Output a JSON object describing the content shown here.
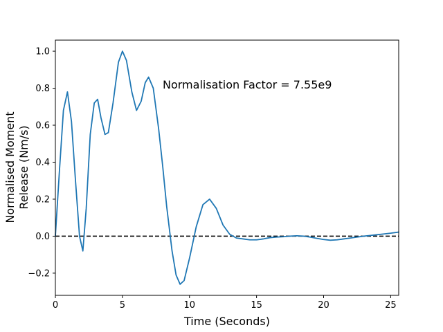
{
  "chart_data": {
    "type": "line",
    "title": "",
    "xlabel": "Time (Seconds)",
    "ylabel_lines": [
      "Normalised Moment",
      "Release (Nm/s)"
    ],
    "xlim": [
      0,
      25.6
    ],
    "ylim": [
      -0.32,
      1.06
    ],
    "xticks": [
      0,
      5,
      10,
      15,
      20,
      25
    ],
    "yticks": [
      -0.2,
      0.0,
      0.2,
      0.4,
      0.6,
      0.8,
      1.0
    ],
    "xtick_labels": [
      "0",
      "5",
      "10",
      "15",
      "20",
      "25"
    ],
    "ytick_labels": [
      "−0.2",
      "0.0",
      "0.2",
      "0.4",
      "0.6",
      "0.8",
      "1.0"
    ],
    "annotation": {
      "text": "Normalisation Factor = 7.55e9",
      "x": 8.0,
      "y": 0.8
    },
    "reference_line": {
      "y": 0.0,
      "style": "dashed",
      "color": "#000000"
    },
    "grid": false,
    "series": [
      {
        "color": "#1f77b4",
        "x": [
          0,
          0.3,
          0.6,
          0.9,
          1.2,
          1.5,
          1.8,
          2.05,
          2.3,
          2.6,
          2.9,
          3.15,
          3.4,
          3.7,
          3.95,
          4.3,
          4.7,
          5.0,
          5.3,
          5.7,
          6.05,
          6.4,
          6.7,
          6.95,
          7.3,
          7.7,
          8.0,
          8.3,
          8.7,
          9.0,
          9.3,
          9.6,
          10.0,
          10.5,
          11.0,
          11.5,
          12.0,
          12.5,
          13.0,
          13.5,
          14.0,
          14.5,
          15.0,
          15.5,
          16.0,
          16.5,
          17.0,
          17.5,
          18.0,
          18.5,
          19.0,
          19.5,
          20.0,
          20.5,
          21.0,
          21.5,
          22.0,
          22.5,
          23.0,
          23.5,
          24.0,
          24.5,
          25.0,
          25.6
        ],
        "y": [
          0.0,
          0.35,
          0.68,
          0.78,
          0.62,
          0.3,
          0.0,
          -0.08,
          0.15,
          0.55,
          0.72,
          0.74,
          0.64,
          0.55,
          0.56,
          0.72,
          0.94,
          1.0,
          0.95,
          0.78,
          0.68,
          0.73,
          0.83,
          0.86,
          0.8,
          0.58,
          0.38,
          0.16,
          -0.08,
          -0.21,
          -0.26,
          -0.24,
          -0.12,
          0.05,
          0.17,
          0.2,
          0.15,
          0.06,
          0.01,
          -0.01,
          -0.015,
          -0.02,
          -0.02,
          -0.015,
          -0.008,
          -0.005,
          -0.003,
          0.0,
          0.002,
          0.0,
          -0.005,
          -0.012,
          -0.018,
          -0.022,
          -0.02,
          -0.015,
          -0.01,
          -0.005,
          0.0,
          0.004,
          0.008,
          0.012,
          0.016,
          0.022
        ]
      }
    ]
  }
}
